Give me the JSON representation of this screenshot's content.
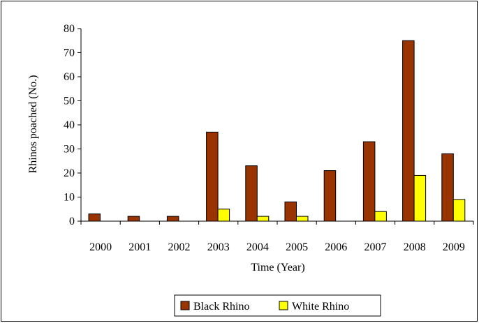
{
  "chart_data": {
    "type": "bar",
    "title": "",
    "xlabel": "Time (Year)",
    "ylabel": "Rhinos poached (No.)",
    "ylim": [
      0,
      80
    ],
    "yticks": [
      0,
      10,
      20,
      30,
      40,
      50,
      60,
      70,
      80
    ],
    "grid": false,
    "legend_position": "bottom",
    "categories": [
      "2000",
      "2001",
      "2002",
      "2003",
      "2004",
      "2005",
      "2006",
      "2007",
      "2008",
      "2009"
    ],
    "series": [
      {
        "name": "Black Rhino",
        "color": "#993300",
        "values": [
          3,
          2,
          2,
          37,
          23,
          8,
          21,
          33,
          75,
          28
        ]
      },
      {
        "name": "White Rhino",
        "color": "#ffff00",
        "values": [
          0,
          0,
          0,
          5,
          2,
          2,
          0,
          4,
          19,
          9
        ]
      }
    ]
  }
}
